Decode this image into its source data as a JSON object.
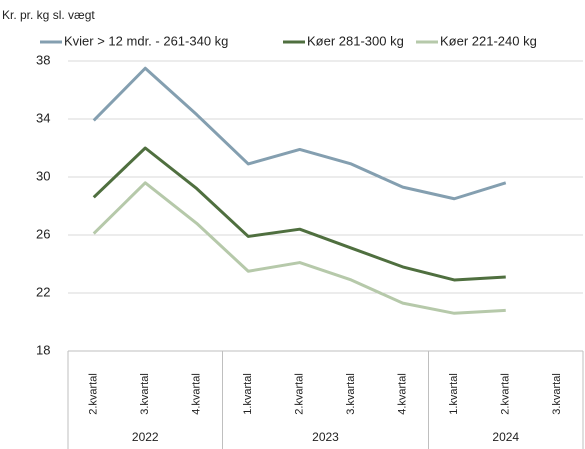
{
  "chart_data": {
    "type": "line",
    "y_label": "Kr. pr. kg sl. vægt",
    "categories": [
      "2.kvartal",
      "3.kvartal",
      "4.kvartal",
      "1.kvartal",
      "2.kvartal",
      "3.kvartal",
      "4.kvartal",
      "1.kvartal",
      "2.kvartal",
      "3.kvartal"
    ],
    "x_groups": [
      {
        "label": "2022",
        "count": 3
      },
      {
        "label": "2023",
        "count": 4
      },
      {
        "label": "2024",
        "count": 3
      }
    ],
    "series": [
      {
        "name": "Kvier > 12 mdr. - 261-340 kg",
        "color": "#849fb0",
        "values": [
          33.9,
          37.5,
          34.3,
          30.9,
          31.9,
          30.9,
          29.3,
          28.5,
          29.6,
          null
        ]
      },
      {
        "name": "Køer 281-300 kg",
        "color": "#4f6f3f",
        "values": [
          28.6,
          32.0,
          29.2,
          25.9,
          26.4,
          25.1,
          23.8,
          22.9,
          23.1,
          null
        ]
      },
      {
        "name": "Køer 221-240 kg",
        "color": "#b6c9aa",
        "values": [
          26.1,
          29.6,
          26.8,
          23.5,
          24.1,
          22.9,
          21.3,
          20.6,
          20.8,
          null
        ]
      }
    ],
    "ylim": [
      18,
      38
    ],
    "yticks": [
      18,
      22,
      26,
      30,
      34,
      38
    ],
    "grid": true,
    "legend": "top"
  }
}
